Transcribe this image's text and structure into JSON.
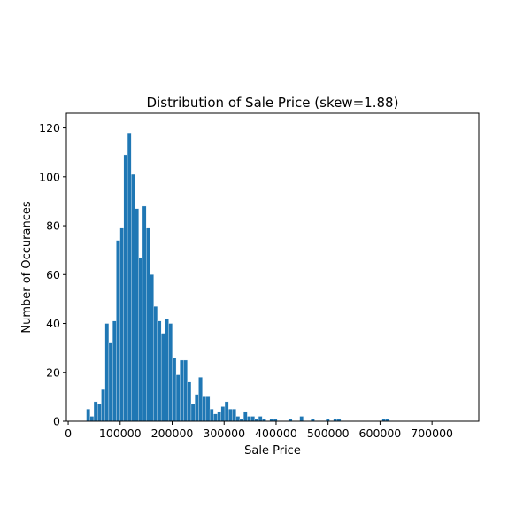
{
  "chart_data": {
    "type": "bar",
    "title": "Distribution of Sale Price (skew=1.88)",
    "xlabel": "Sale Price",
    "ylabel": "Number of Occurances",
    "xlim": [
      -3500,
      790000
    ],
    "ylim": [
      0,
      126
    ],
    "xticks": [
      0,
      100000,
      200000,
      300000,
      400000,
      500000,
      600000,
      700000
    ],
    "yticks": [
      0,
      20,
      40,
      60,
      80,
      100,
      120
    ],
    "grid": false,
    "bar_color": "#1f77b4",
    "bin_start": 34900,
    "bin_width": 7201,
    "values": [
      5,
      2,
      8,
      7,
      13,
      40,
      32,
      41,
      74,
      79,
      109,
      118,
      101,
      87,
      67,
      88,
      79,
      60,
      47,
      41,
      36,
      42,
      40,
      26,
      19,
      25,
      25,
      16,
      7,
      11,
      18,
      10,
      10,
      5,
      3,
      4,
      6,
      8,
      5,
      5,
      2,
      1,
      4,
      2,
      2,
      1,
      2,
      1,
      0,
      1,
      1,
      0,
      0,
      0,
      1,
      0,
      0,
      2,
      0,
      0,
      1,
      0,
      0,
      0,
      1,
      0,
      1,
      1,
      0,
      0,
      0,
      0,
      0,
      0,
      0,
      0,
      0,
      0,
      0,
      1,
      1
    ]
  }
}
